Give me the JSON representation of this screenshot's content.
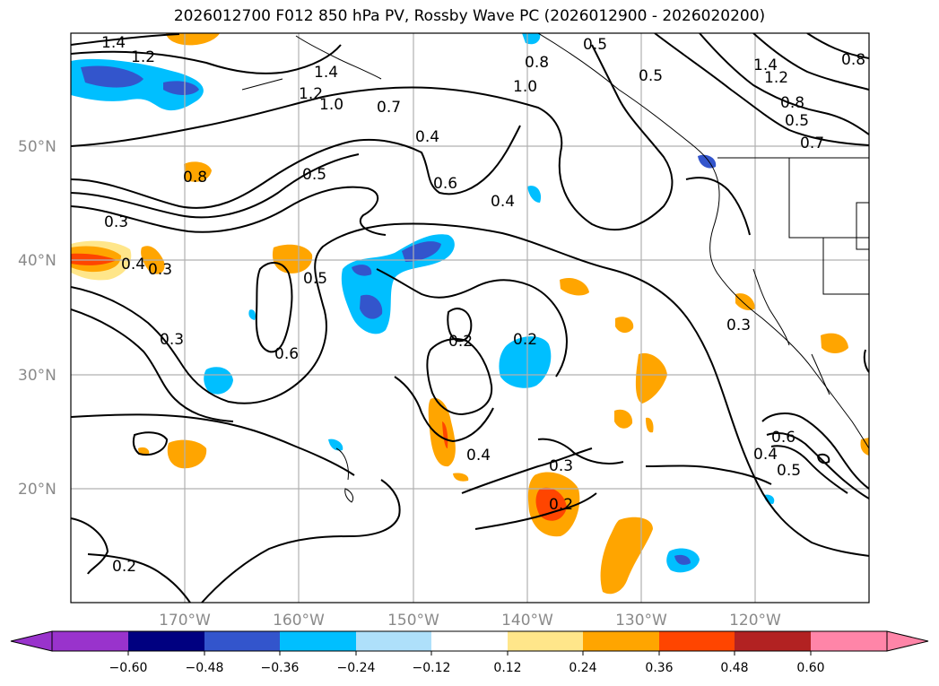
{
  "title": "2026012700 F012 850 hPa PV, Rossby Wave PC (2026012900 - 2026020200)",
  "map": {
    "lat_labels": [
      "50°N",
      "40°N",
      "30°N",
      "20°N"
    ],
    "lon_labels": [
      "170°W",
      "160°W",
      "150°W",
      "140°W",
      "130°W",
      "120°W"
    ],
    "gridlines": true
  },
  "contour_labels": [
    "1.4",
    "1.2",
    "1.4",
    "1.2",
    "1.0",
    "0.7",
    "0.4",
    "0.5",
    "0.8",
    "1.0",
    "0.5",
    "0.6",
    "0.4",
    "0.8",
    "0.3",
    "0.4",
    "0.3",
    "0.5",
    "0.6",
    "0.3",
    "0.2",
    "0.2",
    "0.4",
    "0.3",
    "0.2",
    "0.2",
    "0.3",
    "0.4",
    "0.5",
    "0.6",
    "1.4",
    "1.2",
    "0.8",
    "0.8",
    "0.7",
    "0.5",
    "0.5"
  ],
  "colorbar": {
    "ticks": [
      "−0.60",
      "−0.48",
      "−0.36",
      "−0.24",
      "−0.12",
      "0.12",
      "0.24",
      "0.36",
      "0.48",
      "0.60"
    ],
    "colors": [
      "#9933cc",
      "#000080",
      "#3355cc",
      "#00bfff",
      "#aee0fa",
      "#ffffff",
      "#ffe68a",
      "#ffa500",
      "#ff4500",
      "#b22222",
      "#ff85a8"
    ],
    "extend": "both"
  },
  "styles": {
    "tick_label_color": "#8a8a8a",
    "grid_color": "#b0b0b0",
    "contour_color": "#000000"
  }
}
